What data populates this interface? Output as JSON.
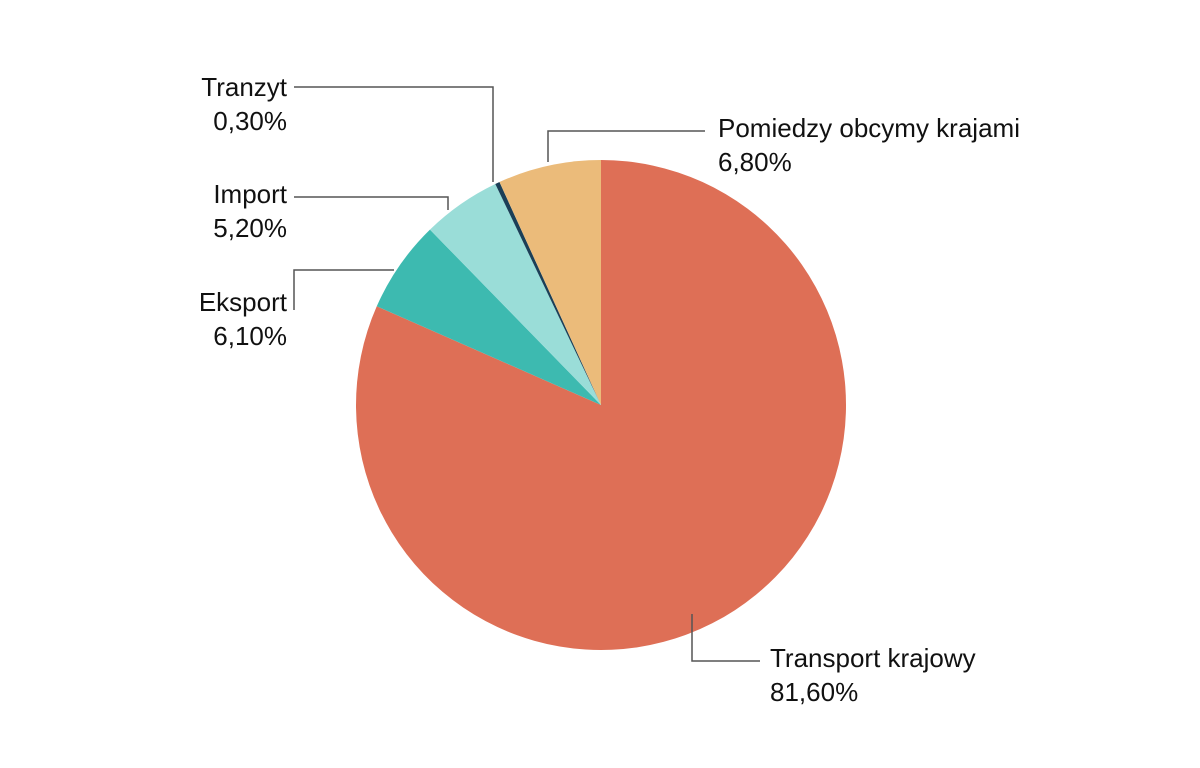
{
  "chart_data": {
    "type": "pie",
    "title": "",
    "start_angle_deg": 0,
    "direction": "clockwise",
    "slices": [
      {
        "label": "Transport krajowy",
        "value": 81.6,
        "display": "81,60%",
        "color": "#de6f56"
      },
      {
        "label": "Eksport",
        "value": 6.1,
        "display": "6,10%",
        "color": "#3dbab0"
      },
      {
        "label": "Import",
        "value": 5.2,
        "display": "5,20%",
        "color": "#9addd8"
      },
      {
        "label": "Tranzyt",
        "value": 0.3,
        "display": "0,30%",
        "color": "#1b3f57"
      },
      {
        "label": "Pomiedzy obcymy krajami",
        "value": 6.8,
        "display": "6,80%",
        "color": "#ebbb7a"
      }
    ],
    "legend": "none (callout labels with leader lines)"
  },
  "labels": {
    "transport": {
      "name": "Transport krajowy",
      "value": "81,60%"
    },
    "eksport": {
      "name": "Eksport",
      "value": "6,10%"
    },
    "import": {
      "name": "Import",
      "value": "5,20%"
    },
    "tranzyt": {
      "name": "Tranzyt",
      "value": "0,30%"
    },
    "pomiedzy": {
      "name": "Pomiedzy obcymy krajami",
      "value": "6,80%"
    }
  }
}
